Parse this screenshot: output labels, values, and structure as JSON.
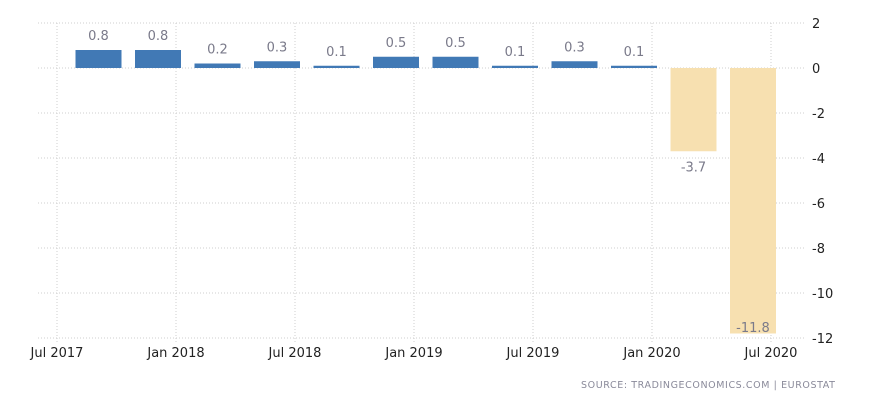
{
  "chart_data": {
    "type": "bar",
    "categories": [
      "Q3 2017",
      "Q4 2017",
      "Q1 2018",
      "Q2 2018",
      "Q3 2018",
      "Q4 2018",
      "Q1 2019",
      "Q2 2019",
      "Q3 2019",
      "Q4 2019",
      "Q1 2020",
      "Q2 2020"
    ],
    "values": [
      0.8,
      0.8,
      0.2,
      0.3,
      0.1,
      0.5,
      0.5,
      0.1,
      0.3,
      0.1,
      -3.7,
      -11.8
    ],
    "data_labels": [
      "0.8",
      "0.8",
      "0.2",
      "0.3",
      "0.1",
      "0.5",
      "0.5",
      "0.1",
      "0.3",
      "0.1",
      "-3.7",
      "-11.8"
    ],
    "x_tick_labels": [
      "Jul 2017",
      "Jan 2018",
      "Jul 2018",
      "Jan 2019",
      "Jul 2019",
      "Jan 2020",
      "Jul 2020"
    ],
    "y_ticks": [
      2,
      0,
      -2,
      -4,
      -6,
      -8,
      -10,
      -12
    ],
    "ylim": [
      -12,
      2
    ],
    "y_axis_side": "right",
    "grid": true,
    "colors": {
      "positive": "#4179b5",
      "negative": "#f7e0b0"
    },
    "source": "SOURCE:  TRADINGECONOMICS.COM  |  EUROSTAT"
  }
}
